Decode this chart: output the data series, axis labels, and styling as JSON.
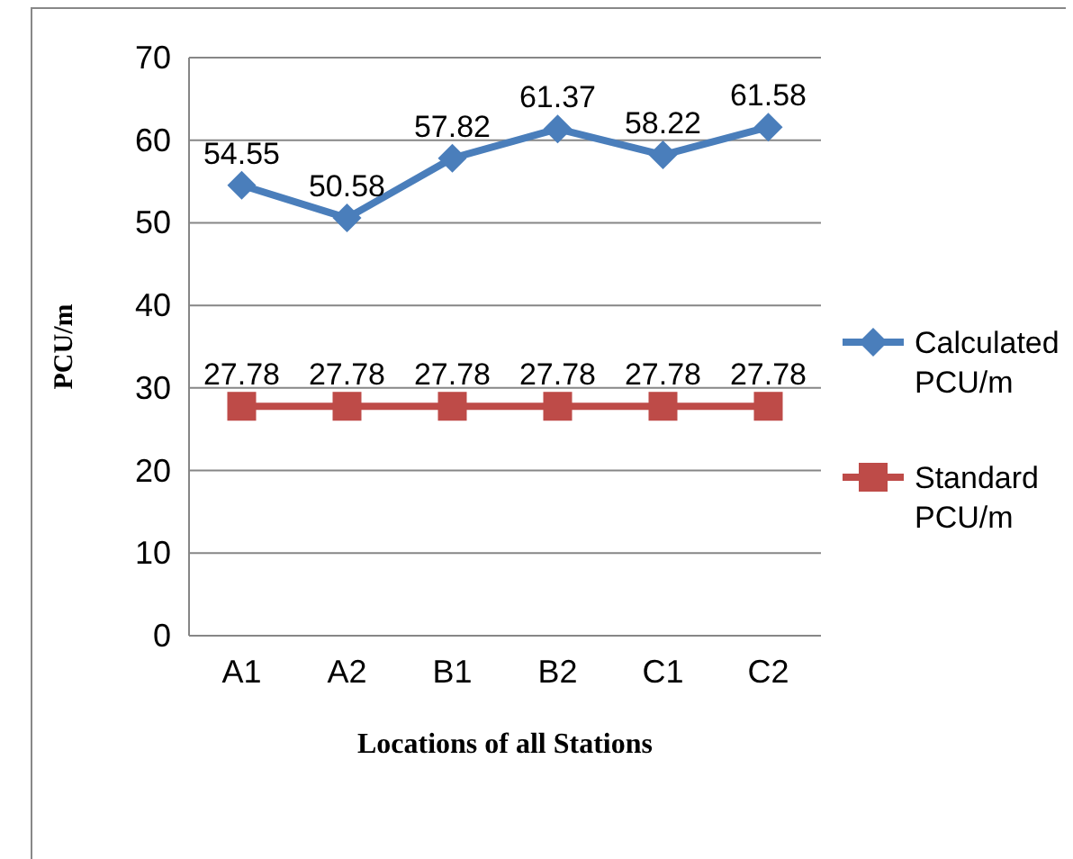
{
  "chart_data": {
    "type": "line",
    "categories": [
      "A1",
      "A2",
      "B1",
      "B2",
      "C1",
      "C2"
    ],
    "series": [
      {
        "name": "Calculated PCU/m",
        "color": "#4a7ebb",
        "values": [
          54.55,
          50.58,
          57.82,
          61.37,
          58.22,
          61.58
        ],
        "marker": "diamond"
      },
      {
        "name": "Standard PCU/m",
        "color": "#be4b48",
        "values": [
          27.78,
          27.78,
          27.78,
          27.78,
          27.78,
          27.78
        ],
        "marker": "square"
      }
    ],
    "xlabel": "Locations of all Stations",
    "ylabel": "PCU/m",
    "ylim": [
      0,
      70
    ],
    "yticks": [
      0,
      10,
      20,
      30,
      40,
      50,
      60,
      70
    ],
    "grid": "y",
    "legend": "right",
    "data_labels": true
  }
}
